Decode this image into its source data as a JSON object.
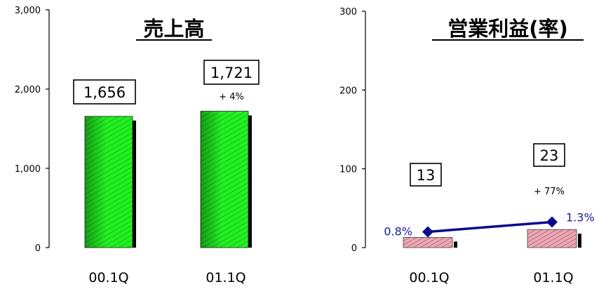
{
  "chart_data": [
    {
      "type": "bar",
      "title": "売上高",
      "categories": [
        "00.1Q",
        "01.1Q"
      ],
      "values": [
        1656,
        1721
      ],
      "value_labels": [
        "1,656",
        "1,721"
      ],
      "growth_labels": [
        "",
        "+ 4%"
      ],
      "ylim": [
        0,
        3000
      ],
      "yticks": [
        "0",
        "1,000",
        "2,000",
        "3,000"
      ],
      "ytick_values": [
        0,
        1000,
        2000,
        3000
      ],
      "bar_color": "#1ee81e",
      "grid": false
    },
    {
      "type": "bar",
      "title": "営業利益(率)",
      "categories": [
        "00.1Q",
        "01.1Q"
      ],
      "values": [
        13,
        23
      ],
      "value_labels": [
        "13",
        "23"
      ],
      "growth_labels": [
        "",
        "+ 77%"
      ],
      "ylim": [
        0,
        300
      ],
      "yticks": [
        "0",
        "100",
        "200",
        "300"
      ],
      "ytick_values": [
        0,
        100,
        200,
        300
      ],
      "bar_color": "#d98a9a",
      "grid": false,
      "rate_series": {
        "values": [
          0.8,
          1.3
        ],
        "labels": [
          "0.8%",
          "1.3%"
        ],
        "color": "#0a0a8c"
      }
    }
  ]
}
